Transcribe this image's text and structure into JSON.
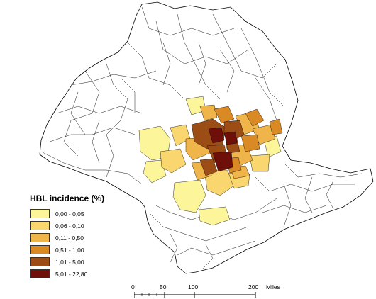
{
  "legend": {
    "title": "HBL incidence (%)",
    "classes": [
      {
        "label": "0,00 - 0,05",
        "color": "#fdf59a"
      },
      {
        "label": "0,06 - 0,10",
        "color": "#f9d66e"
      },
      {
        "label": "0,11 - 0,50",
        "color": "#f0b54a"
      },
      {
        "label": "0,51 - 1,00",
        "color": "#d98a25"
      },
      {
        "label": "1,01 - 5,00",
        "color": "#9c4d16"
      },
      {
        "label": "5,01 - 22,80",
        "color": "#6e0f0a"
      }
    ]
  },
  "scalebar": {
    "ticks": [
      "0",
      "50",
      "100",
      "200"
    ],
    "unit": "Miles"
  },
  "map": {
    "boundary_color": "#000000",
    "background_color": "#ffffff"
  }
}
